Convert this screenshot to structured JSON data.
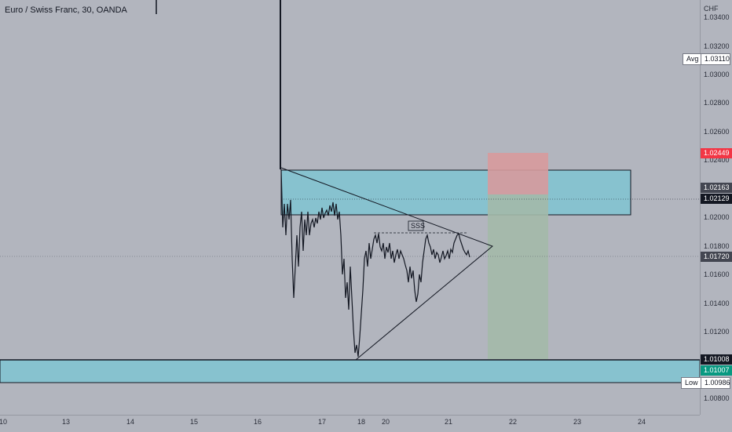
{
  "header": {
    "title": "Euro / Swiss Franc, 30, OANDA"
  },
  "price_axis": {
    "currency": "CHF",
    "labels": [
      "1.03400",
      "1.03200",
      "1.03000",
      "1.02800",
      "1.02600",
      "1.02400",
      "1.02000",
      "1.01800",
      "1.01600",
      "1.01400",
      "1.01200",
      "1.00800"
    ]
  },
  "time_axis": {
    "labels": [
      "10",
      "13",
      "14",
      "15",
      "16",
      "17",
      "18",
      "20",
      "21",
      "22",
      "23",
      "24"
    ]
  },
  "tags": {
    "avg_label": "Avg",
    "avg_value": "1.03110",
    "stop_value": "1.02449",
    "zone_top_value": "1.02163",
    "zone_mid_value": "1.02129",
    "current_value": "1.01720",
    "support_value": "1.01008",
    "green_value": "1.01007",
    "low_label": "Low",
    "low_value": "1.00986"
  },
  "annotations": {
    "sss": "SSS"
  },
  "colors": {
    "zone": "#87c2cf",
    "stop": "#d79a9c",
    "target": "#a3b9a8",
    "background": "#b2b5be",
    "stop_tag": "#f23645",
    "green_tag": "#089981"
  }
}
